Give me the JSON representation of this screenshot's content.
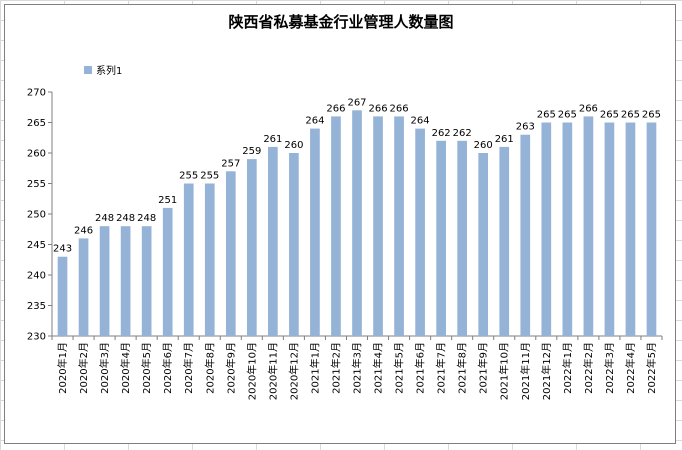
{
  "chart_data": {
    "type": "bar",
    "title": "陕西省私募基金行业管理人数量图",
    "xlabel": "",
    "ylabel": "",
    "ylim": [
      230,
      270
    ],
    "ytick_step": 5,
    "grid": false,
    "legend_position": "top-left",
    "bar_color": "#95b3d7",
    "categories": [
      "2020年1月",
      "2020年2月",
      "2020年3月",
      "2020年4月",
      "2020年5月",
      "2020年6月",
      "2020年7月",
      "2020年8月",
      "2020年9月",
      "2020年10月",
      "2020年11月",
      "2020年12月",
      "2021年1月",
      "2021年2月",
      "2021年3月",
      "2021年4月",
      "2021年5月",
      "2021年6月",
      "2021年7月",
      "2021年8月",
      "2021年9月",
      "2021年10月",
      "2021年11月",
      "2021年12月",
      "2022年1月",
      "2022年2月",
      "2022年3月",
      "2022年4月",
      "2022年5月"
    ],
    "series": [
      {
        "name": "系列1",
        "values": [
          243,
          246,
          248,
          248,
          248,
          251,
          255,
          255,
          257,
          259,
          261,
          260,
          264,
          266,
          267,
          266,
          266,
          264,
          262,
          262,
          260,
          261,
          263,
          265,
          265,
          266,
          265,
          265,
          265
        ]
      }
    ]
  }
}
